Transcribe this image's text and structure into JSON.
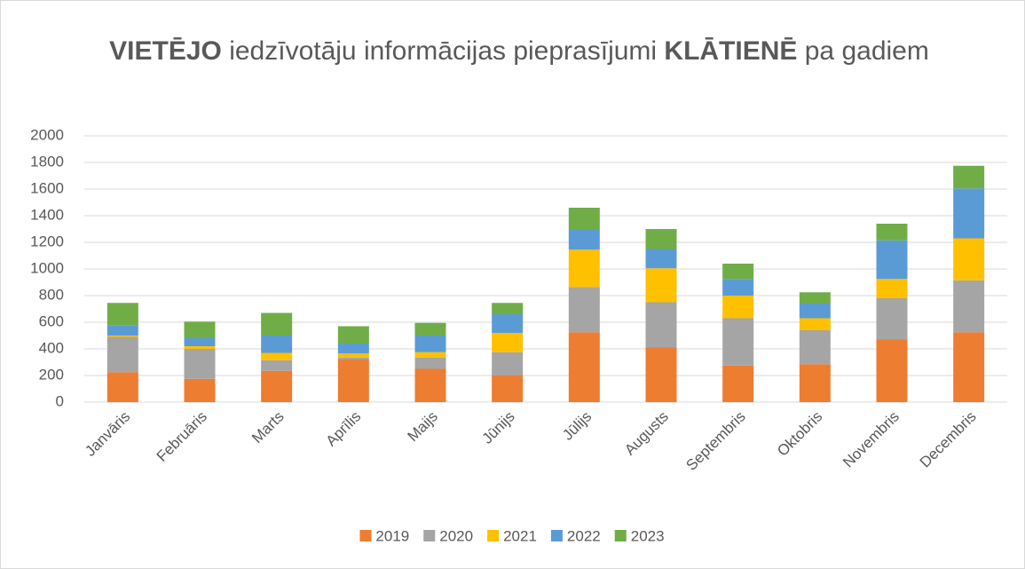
{
  "chart_data": {
    "type": "stacked_bar",
    "title_parts": [
      {
        "text": "VIETĒJO",
        "bold": true
      },
      {
        "text": " iedzīvotāju informācijas pieprasījumi  ",
        "bold": false
      },
      {
        "text": "KLĀTIENĒ",
        "bold": true
      },
      {
        "text": " pa gadiem",
        "bold": false
      }
    ],
    "categories": [
      "Janvāris",
      "Februāris",
      "Marts",
      "Aprīlis",
      "Maijs",
      "Jūnijs",
      "Jūlijs",
      "Augusts",
      "Septembris",
      "Oktobris",
      "Novembris",
      "Decembris"
    ],
    "series": [
      {
        "name": "2019",
        "color": "#ed7d31",
        "values": [
          225,
          175,
          235,
          320,
          250,
          200,
          525,
          410,
          275,
          285,
          470,
          525
        ]
      },
      {
        "name": "2020",
        "color": "#a5a5a5",
        "values": [
          265,
          225,
          80,
          15,
          85,
          175,
          340,
          340,
          355,
          255,
          310,
          390
        ]
      },
      {
        "name": "2021",
        "color": "#ffc000",
        "values": [
          10,
          20,
          55,
          30,
          40,
          145,
          280,
          255,
          170,
          90,
          145,
          315
        ]
      },
      {
        "name": "2022",
        "color": "#5b9bd5",
        "values": [
          75,
          60,
          130,
          75,
          125,
          140,
          155,
          145,
          125,
          110,
          290,
          375
        ]
      },
      {
        "name": "2023",
        "color": "#70ad47",
        "values": [
          170,
          125,
          170,
          130,
          95,
          85,
          160,
          150,
          115,
          85,
          125,
          170
        ]
      }
    ],
    "ylim": [
      0,
      2000
    ],
    "yticks": [
      0,
      200,
      400,
      600,
      800,
      1000,
      1200,
      1400,
      1600,
      1800,
      2000
    ],
    "grid": true,
    "legend": "bottom"
  }
}
